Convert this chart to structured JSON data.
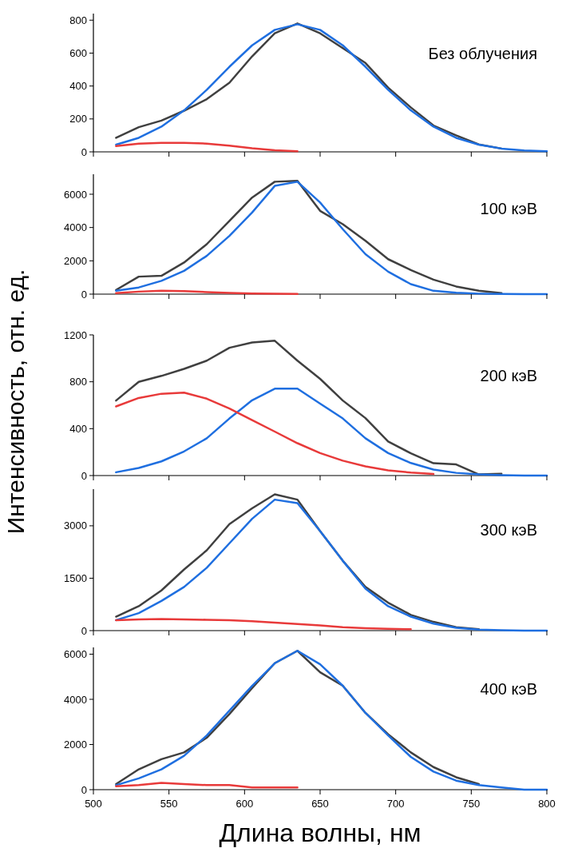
{
  "chart_data": [
    {
      "type": "line",
      "annotations": [
        "Без облучения"
      ],
      "x": [
        515,
        530,
        545,
        560,
        575,
        590,
        605,
        620,
        635,
        650,
        665,
        680,
        695,
        710,
        725,
        740,
        755,
        770,
        785,
        800
      ],
      "xlim": [
        500,
        800
      ],
      "xticks": [
        500,
        550,
        600,
        650,
        700,
        750,
        800
      ],
      "ylim": [
        0,
        840
      ],
      "yticks": [
        0,
        200,
        400,
        600,
        800
      ],
      "tick_labels": "y",
      "series": [
        {
          "color": "#404040",
          "values": [
            85,
            150,
            190,
            250,
            320,
            420,
            580,
            720,
            780,
            720,
            630,
            540,
            390,
            270,
            160,
            100,
            45,
            20,
            null,
            null
          ]
        },
        {
          "color": "#1f6fe0",
          "values": [
            44,
            85,
            153,
            252,
            377,
            517,
            647,
            741,
            775,
            741,
            647,
            517,
            377,
            252,
            153,
            85,
            44,
            20,
            9,
            4
          ]
        },
        {
          "color": "#e83a3a",
          "values": [
            35,
            50,
            55,
            55,
            50,
            38,
            22,
            10,
            4,
            null,
            null,
            null,
            null,
            null,
            null,
            null,
            null,
            null,
            null,
            null
          ]
        }
      ]
    },
    {
      "type": "line",
      "annotations": [
        "100 кэВ"
      ],
      "x": [
        515,
        530,
        545,
        560,
        575,
        590,
        605,
        620,
        635,
        650,
        665,
        680,
        695,
        710,
        725,
        740,
        755,
        770,
        785,
        800
      ],
      "xlim": [
        500,
        800
      ],
      "xticks": [
        500,
        550,
        600,
        650,
        700,
        750,
        800
      ],
      "ylim": [
        0,
        7200
      ],
      "yticks": [
        0,
        2000,
        4000,
        6000
      ],
      "tick_labels": "y",
      "series": [
        {
          "color": "#404040",
          "values": [
            250,
            1050,
            1100,
            1900,
            3000,
            4400,
            5800,
            6750,
            6800,
            5000,
            4200,
            3200,
            2100,
            1450,
            870,
            460,
            200,
            60,
            null,
            null
          ]
        },
        {
          "color": "#1f6fe0",
          "values": [
            200,
            400,
            800,
            1400,
            2300,
            3500,
            4900,
            6500,
            6750,
            5500,
            3900,
            2400,
            1350,
            600,
            200,
            80,
            30,
            10,
            0,
            0
          ]
        },
        {
          "color": "#e83a3a",
          "values": [
            60,
            150,
            200,
            180,
            120,
            70,
            40,
            20,
            10,
            null,
            null,
            null,
            null,
            null,
            null,
            null,
            null,
            null,
            null,
            null
          ]
        }
      ]
    },
    {
      "type": "line",
      "annotations": [
        "200 кэВ"
      ],
      "ylabel": "Интенсивность, отн. ед.",
      "x": [
        515,
        530,
        545,
        560,
        575,
        590,
        605,
        620,
        635,
        650,
        665,
        680,
        695,
        710,
        725,
        740,
        755,
        770,
        785,
        800
      ],
      "xlim": [
        500,
        800
      ],
      "xticks": [
        500,
        550,
        600,
        650,
        700,
        750,
        800
      ],
      "ylim": [
        0,
        1200
      ],
      "yticks": [
        0,
        400,
        800,
        1200
      ],
      "tick_labels": "y",
      "series": [
        {
          "color": "#404040",
          "values": [
            640,
            800,
            850,
            910,
            980,
            1090,
            1135,
            1150,
            980,
            825,
            640,
            490,
            290,
            190,
            105,
            95,
            10,
            15,
            null,
            null
          ]
        },
        {
          "color": "#1f6fe0",
          "values": [
            28,
            65,
            121,
            206,
            318,
            487,
            642,
            741,
            741,
            614,
            487,
            318,
            192,
            107,
            51,
            23,
            10,
            4,
            0,
            0
          ]
        },
        {
          "color": "#e83a3a",
          "values": [
            590,
            662,
            698,
            707,
            656,
            572,
            473,
            375,
            276,
            192,
            127,
            79,
            45,
            25,
            13,
            null,
            null,
            null,
            null,
            null
          ]
        }
      ]
    },
    {
      "type": "line",
      "annotations": [
        "300 кэВ"
      ],
      "x": [
        515,
        530,
        545,
        560,
        575,
        590,
        605,
        620,
        635,
        650,
        665,
        680,
        695,
        710,
        725,
        740,
        755,
        770,
        785,
        800
      ],
      "xlim": [
        500,
        800
      ],
      "xticks": [
        500,
        550,
        600,
        650,
        700,
        750,
        800
      ],
      "ylim": [
        0,
        4050
      ],
      "yticks": [
        0,
        1500,
        3000
      ],
      "tick_labels": "y",
      "series": [
        {
          "color": "#404040",
          "values": [
            400,
            700,
            1150,
            1750,
            2300,
            3050,
            3500,
            3900,
            3750,
            2850,
            2000,
            1250,
            800,
            450,
            250,
            100,
            40,
            null,
            null,
            null
          ]
        },
        {
          "color": "#1f6fe0",
          "values": [
            300,
            500,
            850,
            1250,
            1800,
            2500,
            3200,
            3750,
            3650,
            2850,
            2000,
            1200,
            700,
            400,
            200,
            80,
            30,
            10,
            0,
            0
          ]
        },
        {
          "color": "#e83a3a",
          "values": [
            300,
            320,
            330,
            320,
            310,
            300,
            270,
            230,
            190,
            150,
            100,
            70,
            50,
            40,
            null,
            null,
            null,
            null,
            null,
            null
          ]
        }
      ]
    },
    {
      "type": "line",
      "annotations": [
        "400 кэВ"
      ],
      "xlabel": "Длина волны, нм",
      "x": [
        515,
        530,
        545,
        560,
        575,
        590,
        605,
        620,
        635,
        650,
        665,
        680,
        695,
        710,
        725,
        740,
        755,
        770,
        785,
        800
      ],
      "xlim": [
        500,
        800
      ],
      "xticks": [
        500,
        550,
        600,
        650,
        700,
        750,
        800
      ],
      "ylim": [
        0,
        6300
      ],
      "yticks": [
        0,
        2000,
        4000,
        6000
      ],
      "series": [
        {
          "color": "#404040",
          "values": [
            250,
            900,
            1350,
            1650,
            2300,
            3350,
            4500,
            5600,
            6150,
            5200,
            4600,
            3400,
            2450,
            1650,
            1000,
            550,
            250,
            null,
            null,
            null
          ]
        },
        {
          "color": "#1f6fe0",
          "values": [
            200,
            500,
            900,
            1500,
            2400,
            3500,
            4600,
            5600,
            6150,
            5550,
            4600,
            3400,
            2400,
            1450,
            800,
            400,
            200,
            100,
            0,
            0
          ]
        },
        {
          "color": "#e83a3a",
          "values": [
            150,
            200,
            300,
            250,
            200,
            200,
            100,
            100,
            100,
            null,
            null,
            null,
            null,
            null,
            null,
            null,
            null,
            null,
            null,
            null
          ]
        }
      ]
    }
  ]
}
